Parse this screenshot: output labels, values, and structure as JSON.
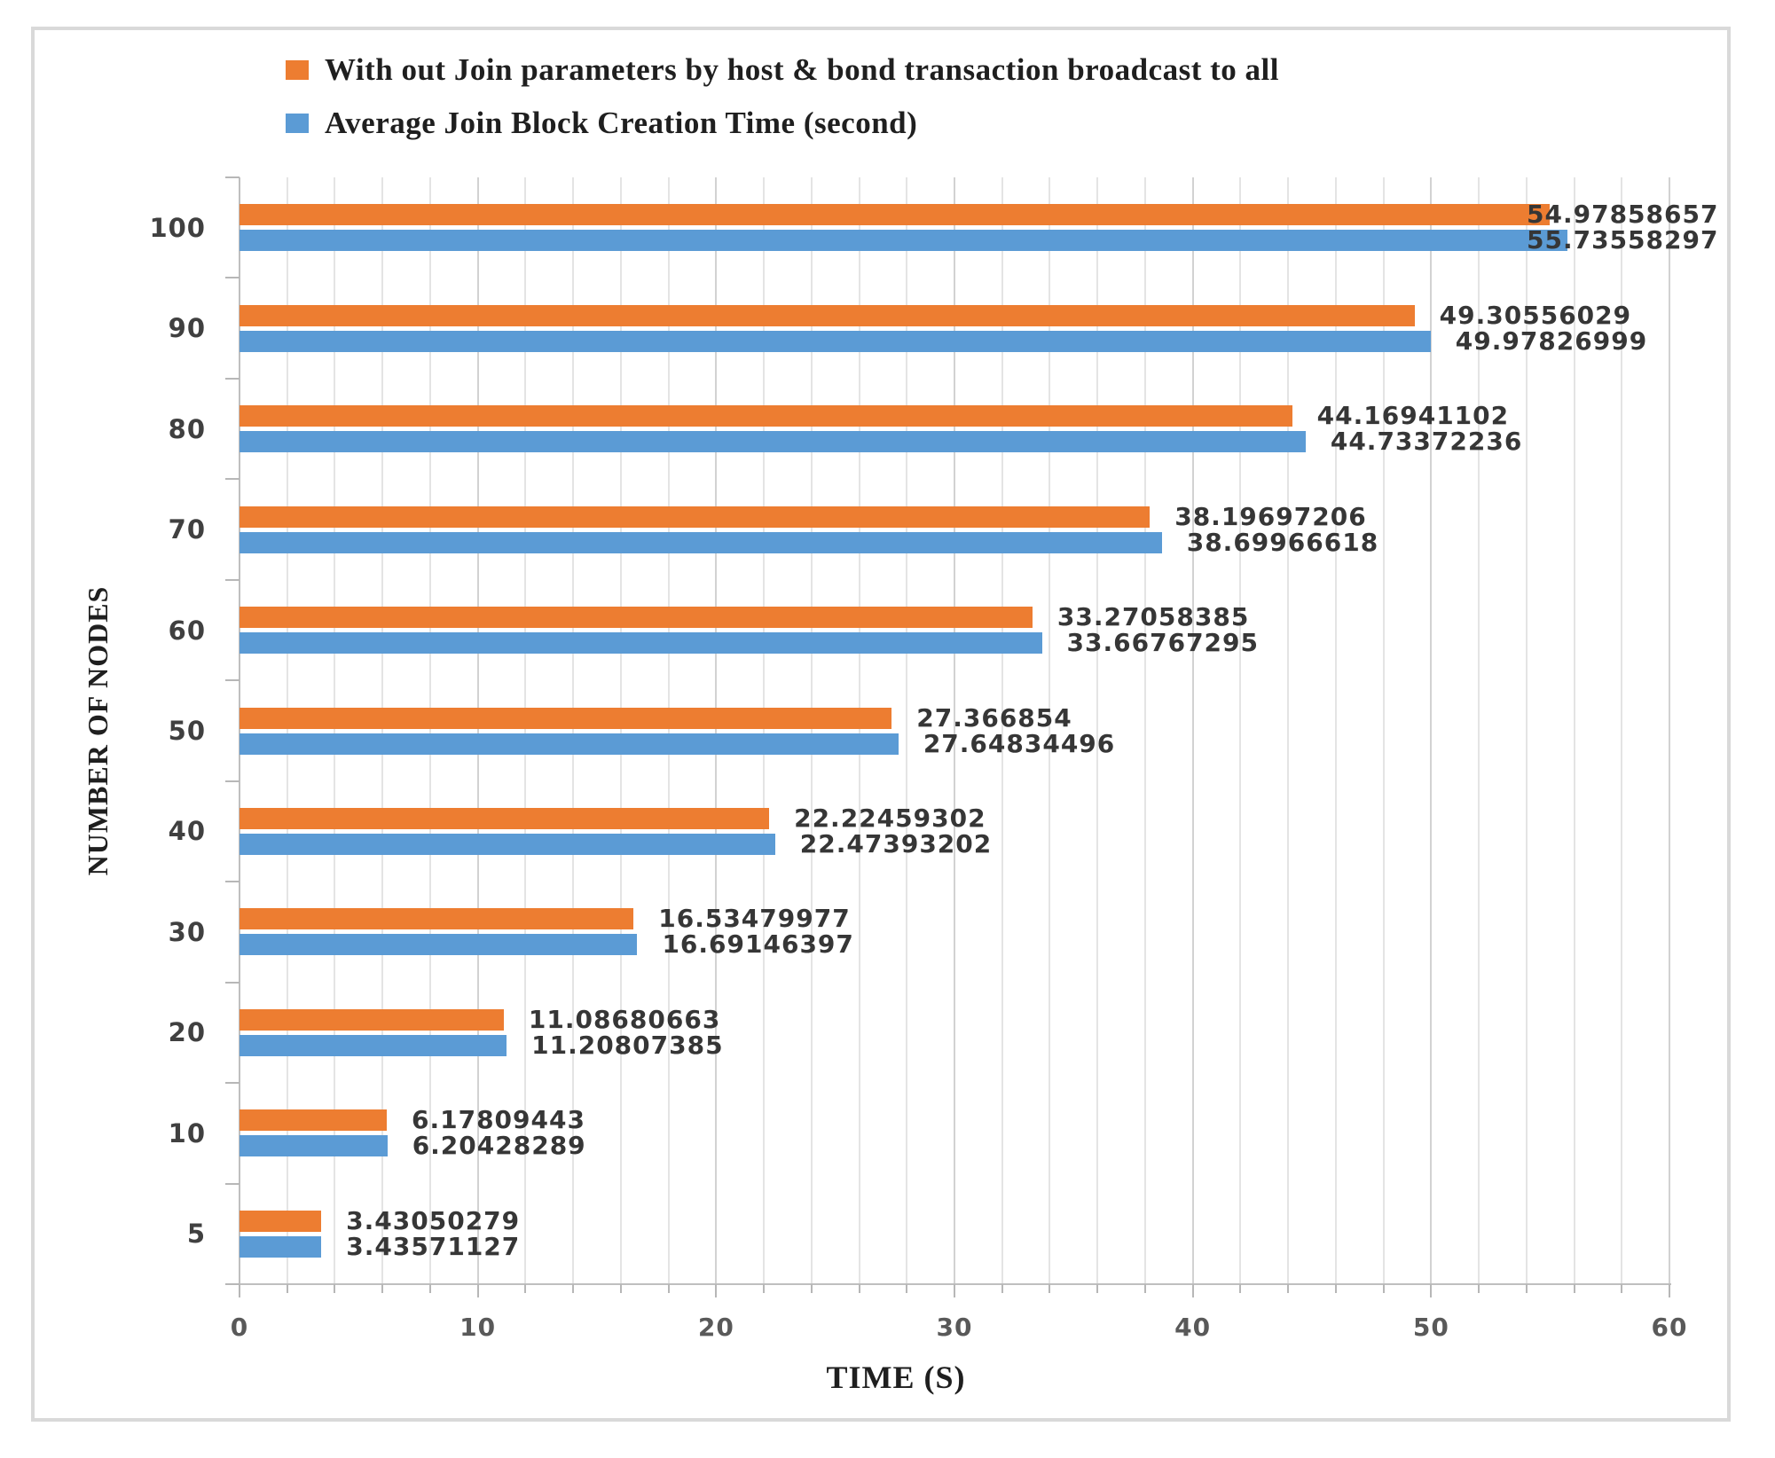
{
  "figure": {
    "border_color": "#d9d9d9",
    "background": "#ffffff"
  },
  "chart_data": {
    "type": "bar",
    "orientation": "horizontal",
    "title": "",
    "xlabel": "TIME (S)",
    "ylabel": "NUMBER OF NODES",
    "xlim": [
      0,
      60
    ],
    "x_major_unit": 10,
    "x_minor_unit": 2,
    "x_ticks": [
      "0",
      "10",
      "20",
      "30",
      "40",
      "50",
      "60"
    ],
    "grid": "vertical, minor every 2 units",
    "legend_position": "top-left",
    "data_labels": "outside-end",
    "categories": [
      "100",
      "90",
      "80",
      "70",
      "60",
      "50",
      "40",
      "30",
      "20",
      "10",
      "5"
    ],
    "series": [
      {
        "name": "With out Join parameters by host & bond transaction broadcast to all",
        "color": "#ED7D31",
        "values": [
          54.97858657,
          49.30556029,
          44.16941102,
          38.19697206,
          33.27058385,
          27.366854,
          22.22459302,
          16.53479977,
          11.08680663,
          6.17809443,
          3.43050279
        ],
        "labels": [
          "54.97858657",
          "49.30556029",
          "44.16941102",
          "38.19697206",
          "33.27058385",
          "27.366854",
          "22.22459302",
          "16.53479977",
          "11.08680663",
          "6.17809443",
          "3.43050279"
        ]
      },
      {
        "name": "Average Join Block Creation Time (second)",
        "color": "#5B9BD5",
        "values": [
          55.73558297,
          49.97826999,
          44.73372236,
          38.69966618,
          33.66767295,
          27.64834496,
          22.47393202,
          16.69146397,
          11.20807385,
          6.20428289,
          3.43571127
        ],
        "labels": [
          "55.73558297",
          "49.97826999",
          "44.73372236",
          "38.69966618",
          "33.66767295",
          "27.64834496",
          "22.47393202",
          "16.69146397",
          "11.20807385",
          "6.20428289",
          "3.43571127"
        ]
      }
    ]
  },
  "colors": {
    "grid_minor": "#e4e4e4",
    "grid_major": "#d2d2d2",
    "axis": "#bfbfbf",
    "tick_label": "#595959",
    "data_label": "#363636"
  }
}
